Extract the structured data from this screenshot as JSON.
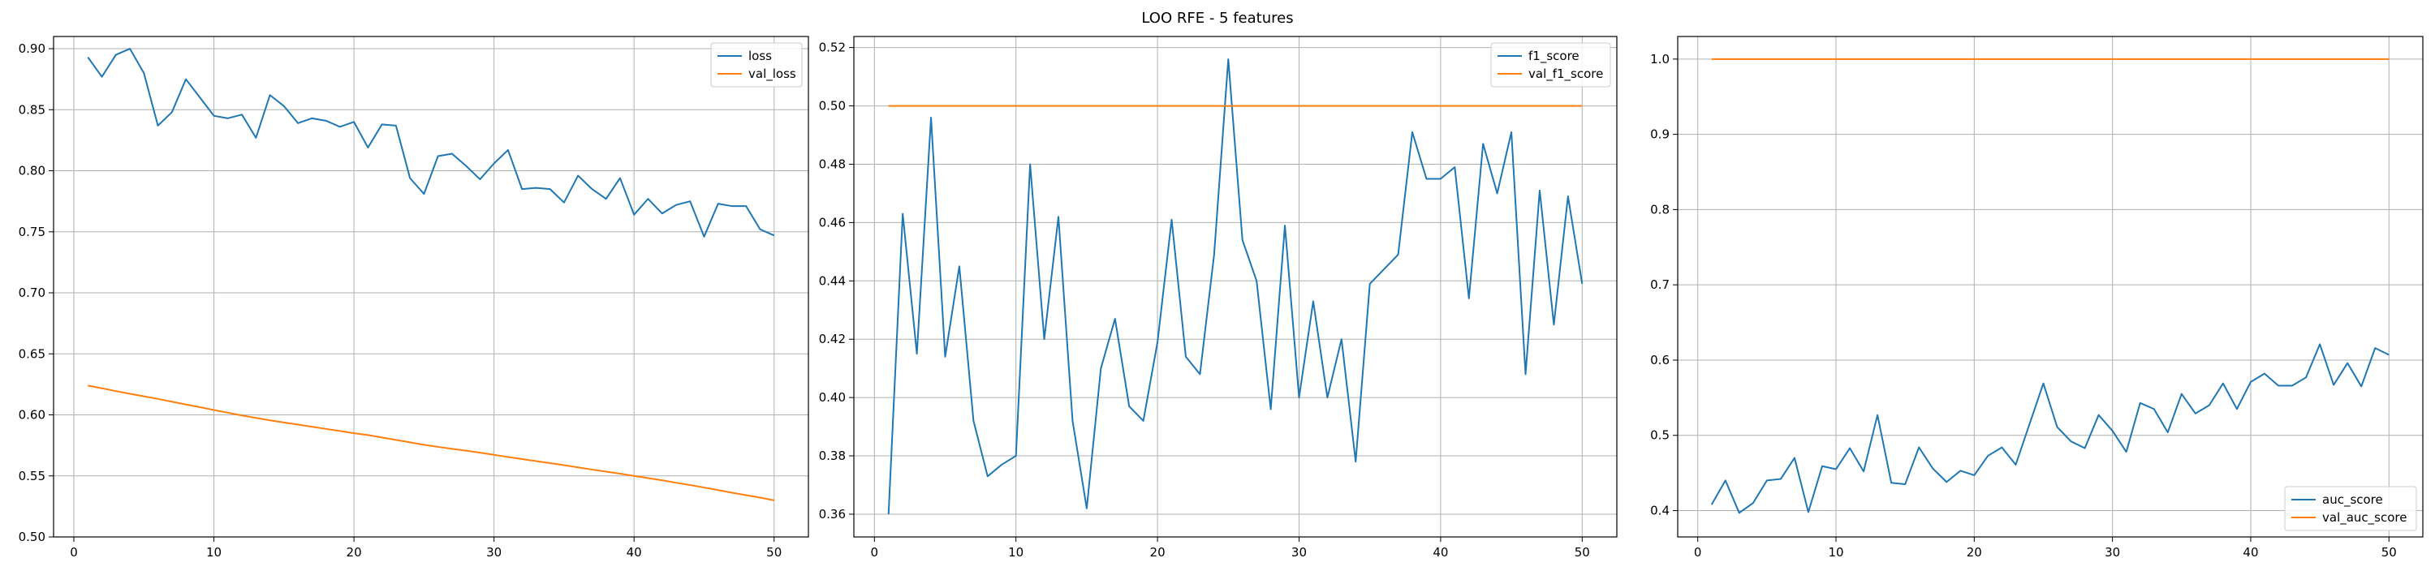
{
  "figure": {
    "title": "LOO RFE - 5 features"
  },
  "colors": {
    "series_1": "#1f77b4",
    "series_2": "#ff7f0e",
    "grid": "#b0b0b0",
    "axes": "#000000"
  },
  "chart_data": [
    {
      "type": "line",
      "title": "",
      "xlabel": "",
      "ylabel": "",
      "xlim": [
        -1.45,
        52.45
      ],
      "ylim": [
        0.5,
        0.91
      ],
      "xticks": [
        0,
        10,
        20,
        30,
        40,
        50
      ],
      "yticks": [
        0.5,
        0.55,
        0.6,
        0.65,
        0.7,
        0.75,
        0.8,
        0.85,
        0.9
      ],
      "ytick_decimals": 2,
      "grid": true,
      "legend_position": "upper-right",
      "x": [
        1,
        2,
        3,
        4,
        5,
        6,
        7,
        8,
        9,
        10,
        11,
        12,
        13,
        14,
        15,
        16,
        17,
        18,
        19,
        20,
        21,
        22,
        23,
        24,
        25,
        26,
        27,
        28,
        29,
        30,
        31,
        32,
        33,
        34,
        35,
        36,
        37,
        38,
        39,
        40,
        41,
        42,
        43,
        44,
        45,
        46,
        47,
        48,
        49,
        50
      ],
      "series": [
        {
          "name": "loss",
          "values": [
            0.893,
            0.877,
            0.895,
            0.9,
            0.88,
            0.837,
            0.848,
            0.875,
            0.86,
            0.845,
            0.843,
            0.846,
            0.827,
            0.862,
            0.853,
            0.839,
            0.843,
            0.841,
            0.836,
            0.84,
            0.819,
            0.838,
            0.837,
            0.794,
            0.781,
            0.812,
            0.814,
            0.804,
            0.793,
            0.806,
            0.817,
            0.785,
            0.786,
            0.785,
            0.774,
            0.796,
            0.785,
            0.777,
            0.794,
            0.764,
            0.777,
            0.765,
            0.772,
            0.775,
            0.746,
            0.773,
            0.771,
            0.771,
            0.752,
            0.747
          ]
        },
        {
          "name": "val_loss",
          "values": [
            0.624,
            0.6218,
            0.6195,
            0.6173,
            0.6152,
            0.6131,
            0.6108,
            0.6085,
            0.6063,
            0.604,
            0.6018,
            0.5995,
            0.5975,
            0.5955,
            0.5938,
            0.592,
            0.5903,
            0.5885,
            0.5868,
            0.585,
            0.5835,
            0.5815,
            0.5795,
            0.5775,
            0.5755,
            0.5738,
            0.5722,
            0.5707,
            0.569,
            0.5673,
            0.5655,
            0.5638,
            0.5621,
            0.5605,
            0.5588,
            0.557,
            0.5552,
            0.5535,
            0.5518,
            0.55,
            0.5482,
            0.5464,
            0.5444,
            0.5425,
            0.5405,
            0.5384,
            0.5362,
            0.5342,
            0.5322,
            0.53
          ]
        }
      ]
    },
    {
      "type": "line",
      "title": "",
      "xlabel": "",
      "ylabel": "",
      "xlim": [
        -1.45,
        52.45
      ],
      "ylim": [
        0.3522,
        0.5238
      ],
      "xticks": [
        0,
        10,
        20,
        30,
        40,
        50
      ],
      "yticks": [
        0.36,
        0.38,
        0.4,
        0.42,
        0.44,
        0.46,
        0.48,
        0.5,
        0.52
      ],
      "ytick_decimals": 2,
      "grid": true,
      "legend_position": "upper-right",
      "x": [
        1,
        2,
        3,
        4,
        5,
        6,
        7,
        8,
        9,
        10,
        11,
        12,
        13,
        14,
        15,
        16,
        17,
        18,
        19,
        20,
        21,
        22,
        23,
        24,
        25,
        26,
        27,
        28,
        29,
        30,
        31,
        32,
        33,
        34,
        35,
        36,
        37,
        38,
        39,
        40,
        41,
        42,
        43,
        44,
        45,
        46,
        47,
        48,
        49,
        50
      ],
      "series": [
        {
          "name": "f1_score",
          "values": [
            0.36,
            0.463,
            0.415,
            0.496,
            0.414,
            0.445,
            0.392,
            0.373,
            0.377,
            0.38,
            0.48,
            0.42,
            0.462,
            0.392,
            0.362,
            0.41,
            0.427,
            0.397,
            0.392,
            0.419,
            0.461,
            0.414,
            0.408,
            0.449,
            0.516,
            0.454,
            0.44,
            0.396,
            0.459,
            0.4,
            0.433,
            0.4,
            0.42,
            0.378,
            0.439,
            0.444,
            0.449,
            0.491,
            0.475,
            0.475,
            0.479,
            0.434,
            0.487,
            0.47,
            0.491,
            0.408,
            0.471,
            0.425,
            0.469,
            0.439
          ]
        },
        {
          "name": "val_f1_score",
          "values": [
            0.5,
            0.5,
            0.5,
            0.5,
            0.5,
            0.5,
            0.5,
            0.5,
            0.5,
            0.5,
            0.5,
            0.5,
            0.5,
            0.5,
            0.5,
            0.5,
            0.5,
            0.5,
            0.5,
            0.5,
            0.5,
            0.5,
            0.5,
            0.5,
            0.5,
            0.5,
            0.5,
            0.5,
            0.5,
            0.5,
            0.5,
            0.5,
            0.5,
            0.5,
            0.5,
            0.5,
            0.5,
            0.5,
            0.5,
            0.5,
            0.5,
            0.5,
            0.5,
            0.5,
            0.5,
            0.5,
            0.5,
            0.5,
            0.5,
            0.5
          ]
        }
      ]
    },
    {
      "type": "line",
      "title": "",
      "xlabel": "",
      "ylabel": "",
      "xlim": [
        -1.45,
        52.45
      ],
      "ylim": [
        0.365,
        1.03
      ],
      "xticks": [
        0,
        10,
        20,
        30,
        40,
        50
      ],
      "yticks": [
        0.4,
        0.5,
        0.6,
        0.7,
        0.8,
        0.9,
        1.0
      ],
      "ytick_decimals": 1,
      "grid": true,
      "legend_position": "lower-right",
      "x": [
        1,
        2,
        3,
        4,
        5,
        6,
        7,
        8,
        9,
        10,
        11,
        12,
        13,
        14,
        15,
        16,
        17,
        18,
        19,
        20,
        21,
        22,
        23,
        24,
        25,
        26,
        27,
        28,
        29,
        30,
        31,
        32,
        33,
        34,
        35,
        36,
        37,
        38,
        39,
        40,
        41,
        42,
        43,
        44,
        45,
        46,
        47,
        48,
        49,
        50
      ],
      "series": [
        {
          "name": "auc_score",
          "values": [
            0.408,
            0.44,
            0.397,
            0.41,
            0.44,
            0.442,
            0.47,
            0.398,
            0.459,
            0.455,
            0.483,
            0.452,
            0.527,
            0.437,
            0.435,
            0.484,
            0.456,
            0.438,
            0.453,
            0.447,
            0.473,
            0.484,
            0.461,
            0.515,
            0.569,
            0.511,
            0.492,
            0.483,
            0.527,
            0.506,
            0.478,
            0.543,
            0.535,
            0.504,
            0.555,
            0.529,
            0.54,
            0.569,
            0.535,
            0.571,
            0.582,
            0.566,
            0.566,
            0.577,
            0.621,
            0.567,
            0.596,
            0.565,
            0.616,
            0.607
          ]
        },
        {
          "name": "val_auc_score",
          "values": [
            1,
            1,
            1,
            1,
            1,
            1,
            1,
            1,
            1,
            1,
            1,
            1,
            1,
            1,
            1,
            1,
            1,
            1,
            1,
            1,
            1,
            1,
            1,
            1,
            1,
            1,
            1,
            1,
            1,
            1,
            1,
            1,
            1,
            1,
            1,
            1,
            1,
            1,
            1,
            1,
            1,
            1,
            1,
            1,
            1,
            1,
            1,
            1,
            1,
            1
          ]
        }
      ]
    }
  ]
}
